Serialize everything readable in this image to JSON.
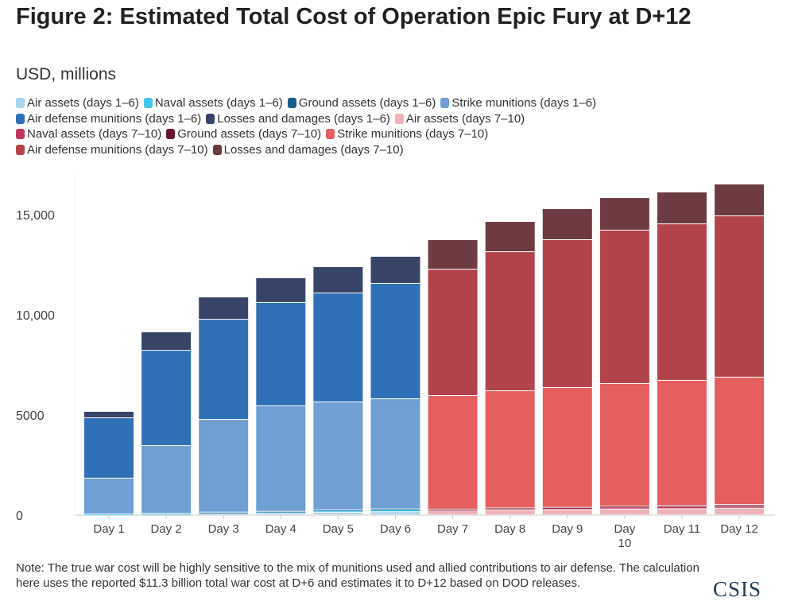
{
  "chart_data": {
    "type": "bar",
    "stacked": true,
    "title": "Figure 2: Estimated Total Cost of Operation Epic Fury at D+12",
    "subtitle": "USD, millions",
    "xlabel": "",
    "ylabel": "",
    "ylim": [
      0,
      17000
    ],
    "yticks": [
      0,
      5000,
      10000,
      15000
    ],
    "ytick_labels": [
      "0",
      "5000",
      "10,000",
      "15,000"
    ],
    "grid": false,
    "legend_position": "top",
    "categories": [
      "Day 1",
      "Day 2",
      "Day 3",
      "Day 4",
      "Day 5",
      "Day 6",
      "Day 7",
      "Day 8",
      "Day 9",
      "Day 10",
      "Day 11",
      "Day 12"
    ],
    "series": [
      {
        "name": "Air assets (days 1–6)",
        "color": "#a9d6ec",
        "values": [
          30,
          50,
          80,
          100,
          130,
          150,
          null,
          null,
          null,
          null,
          null,
          null
        ]
      },
      {
        "name": "Naval assets (days 1–6)",
        "color": "#41c7ef",
        "values": [
          10,
          20,
          40,
          60,
          100,
          130,
          null,
          null,
          null,
          null,
          null,
          null
        ]
      },
      {
        "name": "Ground assets (days 1–6)",
        "color": "#1a5e8f",
        "values": [
          0,
          0,
          10,
          10,
          10,
          10,
          null,
          null,
          null,
          null,
          null,
          null
        ]
      },
      {
        "name": "Strike munitions (days 1–6)",
        "color": "#6f9fd3",
        "values": [
          1790,
          3380,
          4630,
          5270,
          5390,
          5500,
          null,
          null,
          null,
          null,
          null,
          null
        ]
      },
      {
        "name": "Air defense munitions (days 1–6)",
        "color": "#2f70b6",
        "values": [
          3010,
          4760,
          5000,
          5160,
          5440,
          5760,
          null,
          null,
          null,
          null,
          null,
          null
        ]
      },
      {
        "name": "Losses and damages (days 1–6)",
        "color": "#384467",
        "values": [
          320,
          920,
          1110,
          1230,
          1310,
          1350,
          null,
          null,
          null,
          null,
          null,
          null
        ]
      },
      {
        "name": "Air assets (days 7–10)",
        "color": "#f0b2b7",
        "values": [
          null,
          null,
          null,
          null,
          null,
          null,
          200,
          250,
          260,
          290,
          300,
          330
        ]
      },
      {
        "name": "Naval assets (days 7–10)",
        "color": "#c0365a",
        "values": [
          null,
          null,
          null,
          null,
          null,
          null,
          60,
          70,
          80,
          100,
          110,
          120
        ]
      },
      {
        "name": "Ground assets (days 7–10)",
        "color": "#6b1530",
        "values": [
          null,
          null,
          null,
          null,
          null,
          null,
          20,
          20,
          30,
          40,
          50,
          60
        ]
      },
      {
        "name": "Strike munitions (days 7–10)",
        "color": "#e55f5f",
        "values": [
          null,
          null,
          null,
          null,
          null,
          null,
          5670,
          5850,
          5980,
          6120,
          6250,
          6360
        ]
      },
      {
        "name": "Air defense munitions (days 7–10)",
        "color": "#b2434b",
        "values": [
          null,
          null,
          null,
          null,
          null,
          null,
          6310,
          6940,
          7380,
          7660,
          7810,
          8050
        ]
      },
      {
        "name": "Losses and damages (days 7–10)",
        "color": "#6e3b40",
        "values": [
          null,
          null,
          null,
          null,
          null,
          null,
          1470,
          1510,
          1550,
          1620,
          1590,
          1590
        ]
      }
    ]
  },
  "note": "Note: The true war cost will be highly sensitive to the mix of munitions used and allied contributions to air defense. The calculation here uses the reported $11.3 billion total war cost at D+6 and estimates it to D+12 based on DOD releases.",
  "logo": "CSIS"
}
